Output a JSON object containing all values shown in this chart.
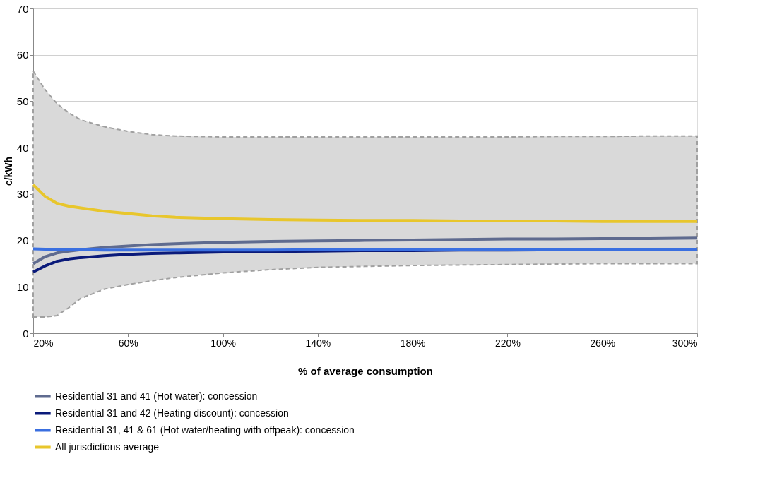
{
  "chart_data": {
    "type": "line",
    "xlabel": "% of average consumption",
    "ylabel": "c/kWh",
    "x": [
      20,
      25,
      30,
      35,
      40,
      50,
      60,
      70,
      80,
      100,
      120,
      140,
      160,
      180,
      200,
      220,
      240,
      260,
      280,
      300
    ],
    "xlim": [
      20,
      300
    ],
    "xticks": [
      {
        "value": 20,
        "label": "20%"
      },
      {
        "value": 60,
        "label": "60%"
      },
      {
        "value": 100,
        "label": "100%"
      },
      {
        "value": 140,
        "label": "140%"
      },
      {
        "value": 180,
        "label": "180%"
      },
      {
        "value": 220,
        "label": "220%"
      },
      {
        "value": 260,
        "label": "260%"
      },
      {
        "value": 300,
        "label": "300%"
      }
    ],
    "ylim": [
      0,
      70
    ],
    "yticks": [
      0,
      10,
      20,
      30,
      40,
      50,
      60,
      70
    ],
    "grid": "y",
    "legend": "bottom",
    "line_style": "solid",
    "marker": "none",
    "series": [
      {
        "name": "Residential 31 and 41 (Hot water): concession",
        "color": "#5f6b8f",
        "values": [
          15.0,
          16.5,
          17.3,
          17.7,
          18.0,
          18.5,
          18.8,
          19.1,
          19.3,
          19.6,
          19.8,
          19.9,
          20.0,
          20.1,
          20.2,
          20.3,
          20.3,
          20.4,
          20.4,
          20.5
        ]
      },
      {
        "name": "Residential 31 and 42 (Heating discount): concession",
        "color": "#0a1a7a",
        "values": [
          13.2,
          14.5,
          15.5,
          16.0,
          16.3,
          16.7,
          17.0,
          17.2,
          17.3,
          17.5,
          17.6,
          17.7,
          17.8,
          17.8,
          17.9,
          17.9,
          18.0,
          18.0,
          18.1,
          18.1
        ]
      },
      {
        "name": "Residential 31, 41 & 61 (Hot water/heating with offpeak): concession",
        "color": "#3a6fe0",
        "values": [
          18.2,
          18.1,
          18.0,
          18.0,
          18.0,
          17.9,
          17.9,
          17.9,
          17.9,
          17.9,
          17.9,
          18.0,
          18.0,
          18.0,
          18.0,
          18.0,
          18.0,
          18.0,
          18.0,
          18.0
        ]
      },
      {
        "name": "All jurisdictions average",
        "color": "#e8c62c",
        "values": [
          32.0,
          29.5,
          28.0,
          27.4,
          27.0,
          26.3,
          25.8,
          25.3,
          25.0,
          24.7,
          24.5,
          24.4,
          24.3,
          24.3,
          24.2,
          24.2,
          24.2,
          24.1,
          24.1,
          24.1
        ],
        "lower": [
          3.5,
          3.5,
          3.8,
          5.5,
          7.5,
          9.5,
          10.5,
          11.3,
          12.0,
          13.0,
          13.7,
          14.2,
          14.4,
          14.6,
          14.7,
          14.8,
          14.9,
          15.0,
          15.0,
          15.0
        ],
        "upper": [
          56.5,
          52.5,
          49.5,
          47.5,
          46.0,
          44.5,
          43.5,
          42.8,
          42.5,
          42.3,
          42.3,
          42.3,
          42.3,
          42.3,
          42.3,
          42.3,
          42.4,
          42.4,
          42.5,
          42.5
        ]
      }
    ]
  }
}
